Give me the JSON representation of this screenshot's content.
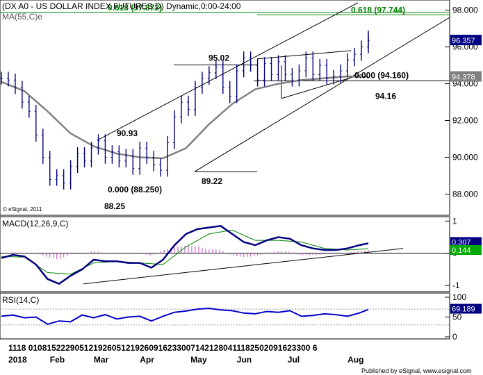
{
  "chart_data": [
    {
      "type": "line",
      "panel": "price",
      "title": "(DX A0 - US DOLLAR INDEX FUTURES,D) Dynamic,0:00-24:00",
      "subtitle": "MA(55,C)e",
      "watermark": "© eSignal, 2011",
      "ylim": [
        87.0,
        98.4
      ],
      "y_ticks": [
        "98.000",
        "96.000",
        "94.000",
        "92.000",
        "90.000",
        "88.000"
      ],
      "y_tick_values": [
        98,
        96,
        94,
        92,
        90,
        88
      ],
      "last_price": "96.357",
      "ma_value": "94.378",
      "series": [
        {
          "name": "price",
          "x": [
            0,
            3,
            6,
            9,
            12,
            15,
            18,
            21,
            24,
            27,
            30,
            33,
            36,
            39,
            42,
            45,
            48,
            51,
            54,
            57,
            60,
            63,
            66,
            69,
            72,
            75,
            78,
            81,
            84,
            87,
            90,
            93,
            96,
            99,
            102,
            105,
            108,
            111,
            114,
            117,
            120,
            123,
            126,
            129,
            132,
            135,
            138,
            141,
            144,
            147,
            150,
            153,
            156,
            159
          ],
          "values": [
            94.3,
            94.2,
            93.8,
            93.0,
            92.5,
            91.2,
            90.0,
            88.8,
            89.0,
            88.6,
            89.5,
            90.2,
            89.8,
            90.5,
            90.9,
            90.0,
            90.3,
            89.8,
            90.1,
            89.4,
            90.5,
            90.0,
            89.6,
            89.3,
            90.8,
            92.2,
            93.0,
            92.6,
            93.8,
            94.3,
            94.6,
            94.9,
            93.8,
            93.3,
            94.7,
            95.4,
            95.0,
            94.2,
            95.1,
            94.5,
            95.2,
            94.5,
            94.2,
            94.7,
            95.4,
            94.5,
            95.0,
            94.3,
            94.4,
            94.7,
            95.3,
            95.6,
            96.0,
            96.36
          ]
        },
        {
          "name": "MA(55,C)e",
          "x": [
            0,
            10,
            20,
            30,
            40,
            50,
            60,
            70,
            80,
            90,
            100,
            110,
            120,
            130,
            140,
            150,
            159
          ],
          "values": [
            94.1,
            93.6,
            92.5,
            91.3,
            90.6,
            90.2,
            90.0,
            89.95,
            90.5,
            91.8,
            92.9,
            93.7,
            94.0,
            94.2,
            94.3,
            94.4,
            94.378
          ]
        }
      ],
      "annotations": [
        {
          "text": "0.618 (97.872)"
        },
        {
          "text": "0.618 (97.744)"
        },
        {
          "text": "95.02"
        },
        {
          "text": "0.000 (94.160)"
        },
        {
          "text": "94.16"
        },
        {
          "text": "90.93"
        },
        {
          "text": "0.000 (88.250)"
        },
        {
          "text": "89.22"
        },
        {
          "text": "88.25"
        }
      ],
      "fib_lines": [
        97.872,
        97.744,
        94.16
      ]
    },
    {
      "type": "line",
      "panel": "macd",
      "title": "MACD(12,26,9,C)",
      "ylim": [
        -1.15,
        1.05
      ],
      "y_ticks": [
        "1",
        "0",
        "-1"
      ],
      "y_tick_values": [
        1,
        0,
        -1
      ],
      "macd_value": "0.307",
      "signal_value": "0.144",
      "series": [
        {
          "name": "MACD",
          "x": [
            0,
            5,
            10,
            15,
            20,
            25,
            30,
            35,
            40,
            45,
            50,
            55,
            60,
            65,
            70,
            75,
            80,
            85,
            90,
            95,
            100,
            105,
            110,
            115,
            120,
            125,
            130,
            135,
            140,
            145,
            150,
            155,
            159
          ],
          "values": [
            -0.15,
            -0.05,
            -0.1,
            -0.35,
            -0.8,
            -0.95,
            -0.7,
            -0.5,
            -0.2,
            -0.25,
            -0.25,
            -0.3,
            -0.3,
            -0.45,
            -0.2,
            0.25,
            0.6,
            0.75,
            0.8,
            0.85,
            0.6,
            0.35,
            0.25,
            0.4,
            0.5,
            0.45,
            0.25,
            0.15,
            0.1,
            0.1,
            0.15,
            0.25,
            0.307
          ]
        },
        {
          "name": "Signal",
          "x": [
            0,
            10,
            20,
            30,
            40,
            50,
            60,
            70,
            80,
            90,
            100,
            110,
            120,
            130,
            140,
            150,
            159
          ],
          "values": [
            -0.1,
            -0.12,
            -0.6,
            -0.65,
            -0.3,
            -0.25,
            -0.3,
            -0.35,
            0.2,
            0.6,
            0.72,
            0.4,
            0.4,
            0.35,
            0.15,
            0.1,
            0.144
          ]
        }
      ]
    },
    {
      "type": "line",
      "panel": "rsi",
      "title": "RSI(14,C)",
      "ylim": [
        0,
        100
      ],
      "y_ticks": [
        "100",
        "50",
        "0"
      ],
      "y_tick_values": [
        100,
        50,
        0
      ],
      "rsi_value": "69.189",
      "series": [
        {
          "name": "RSI",
          "x": [
            0,
            5,
            10,
            15,
            20,
            25,
            30,
            35,
            40,
            45,
            50,
            55,
            60,
            65,
            70,
            75,
            80,
            85,
            90,
            95,
            100,
            105,
            110,
            115,
            120,
            125,
            130,
            135,
            140,
            145,
            150,
            155,
            159
          ],
          "values": [
            52,
            55,
            48,
            50,
            32,
            40,
            38,
            55,
            48,
            56,
            45,
            50,
            52,
            40,
            52,
            62,
            65,
            70,
            72,
            68,
            66,
            60,
            58,
            64,
            62,
            66,
            52,
            54,
            58,
            56,
            52,
            60,
            69
          ]
        }
      ]
    }
  ],
  "x_axis": {
    "day_labels": "1118  0108152229051219260512192609162330071421280411182502091623300 6",
    "month_labels": [
      {
        "text": "2018",
        "x": 3
      },
      {
        "text": "Feb",
        "x": 21
      },
      {
        "text": "Mar",
        "x": 40
      },
      {
        "text": "Apr",
        "x": 60
      },
      {
        "text": "May",
        "x": 82
      },
      {
        "text": "Jun",
        "x": 102
      },
      {
        "text": "Jul",
        "x": 124
      },
      {
        "text": "Aug",
        "x": 150
      }
    ]
  },
  "footer": "Published by eSignal, www.esignal.com",
  "colors": {
    "price": "#000080",
    "ma": "#808080",
    "fib": "#008000",
    "macd_line": "#000080",
    "signal_line": "#008000",
    "histogram": "#cc66cc",
    "rsi": "#0000cc",
    "last_price_bg": "#000080",
    "ma_bg": "#808080",
    "signal_bg": "#00aa00"
  }
}
